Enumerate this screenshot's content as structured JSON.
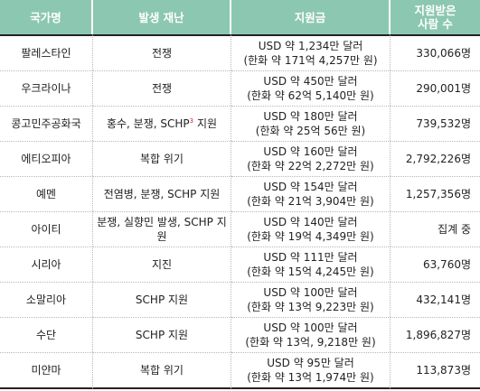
{
  "header": {
    "country": "국가명",
    "disaster": "발생 재난",
    "support": "지원금",
    "people_line1": "지원받은",
    "people_line2": "사람 수"
  },
  "rows": [
    {
      "country": "팔레스타인",
      "disaster": "전쟁",
      "disaster_sup": "",
      "disaster_after": "",
      "support_usd": "USD 약 1,234만 달러",
      "support_krw": "(한화 약 171억 4,257만 원)",
      "people": "330,066명"
    },
    {
      "country": "우크라이나",
      "disaster": "전쟁",
      "disaster_sup": "",
      "disaster_after": "",
      "support_usd": "USD 약 450만 달러",
      "support_krw": "(한화 약 62억 5,140만 원)",
      "people": "290,001명"
    },
    {
      "country": "콩고민주공화국",
      "disaster": "홍수, 분쟁, SCHP",
      "disaster_sup": "3",
      "disaster_after": " 지원",
      "support_usd": "USD 약 180만 달러",
      "support_krw": "(한화 약 25억 56만 원)",
      "people": "739,532명"
    },
    {
      "country": "에티오피아",
      "disaster": "복합 위기",
      "disaster_sup": "",
      "disaster_after": "",
      "support_usd": "USD 약 160만 달러",
      "support_krw": "(한화 약 22억 2,272만 원)",
      "people": "2,792,226명"
    },
    {
      "country": "예멘",
      "disaster": "전염병, 분쟁, SCHP 지원",
      "disaster_sup": "",
      "disaster_after": "",
      "support_usd": "USD 약 154만 달러",
      "support_krw": "(한화 약 21억 3,904만 원)",
      "people": "1,257,356명"
    },
    {
      "country": "아이티",
      "disaster": "분쟁, 실향민 발생, SCHP 지원",
      "disaster_sup": "",
      "disaster_after": "",
      "support_usd": "USD 약 140만 달러",
      "support_krw": "(한화 약 19억 4,349만 원)",
      "people": "집계 중"
    },
    {
      "country": "시리아",
      "disaster": "지진",
      "disaster_sup": "",
      "disaster_after": "",
      "support_usd": "USD 약 111만 달러",
      "support_krw": "(한화 약 15억 4,245만 원)",
      "people": "63,760명"
    },
    {
      "country": "소말리아",
      "disaster": "SCHP 지원",
      "disaster_sup": "",
      "disaster_after": "",
      "support_usd": "USD 약 100만 달러",
      "support_krw": "(한화 약 13억 9,223만 원)",
      "people": "432,141명"
    },
    {
      "country": "수단",
      "disaster": "SCHP 지원",
      "disaster_sup": "",
      "disaster_after": "",
      "support_usd": "USD 약 100만 달러",
      "support_krw": "(한화 약 13억, 9,218만 원)",
      "people": "1,896,827명"
    },
    {
      "country": "미얀마",
      "disaster": "복합 위기",
      "disaster_sup": "",
      "disaster_after": "",
      "support_usd": "USD 약 95만 달러",
      "support_krw": "(한화 약 13억 1,974만 원)",
      "people": "113,873명"
    }
  ],
  "colors": {
    "header_bg": "#8cc7b2",
    "header_text": "#ffffff",
    "superscript": "#d9262b",
    "rule": "#222222"
  }
}
